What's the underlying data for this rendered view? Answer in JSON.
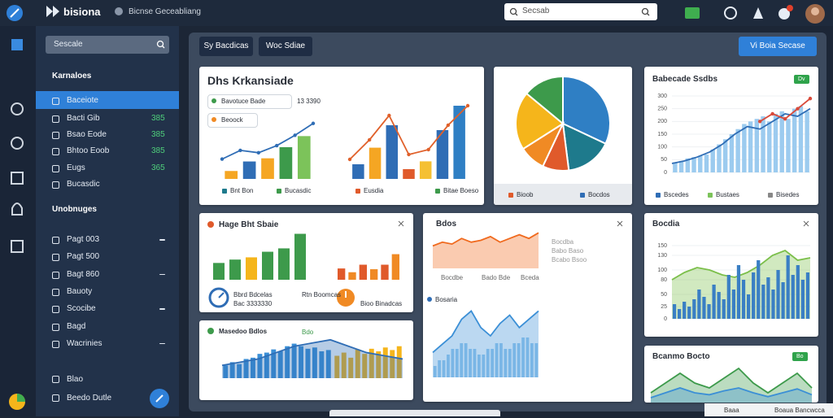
{
  "topbar": {
    "brand": "bisiona",
    "breadcrumb": "Bicnse Geceabliang",
    "search": "Secsab"
  },
  "sidebar": {
    "search": "Sescale",
    "section1": "Karnaloes",
    "items1": [
      {
        "label": "Baceiote"
      },
      {
        "label": "Bacti Gib",
        "value": 385
      },
      {
        "label": "Bsao Eode",
        "value": 385
      },
      {
        "label": "Bhtoo Eoob",
        "value": 385
      },
      {
        "label": "Eugs",
        "value": 365
      },
      {
        "label": "Bucasdic"
      }
    ],
    "section2": "Unobnuges",
    "items2": [
      "Pagt 003",
      "Pagt 500",
      "Bagt 860",
      "Bauoty",
      "Scocibe",
      "Bagd",
      "Wacrinies"
    ],
    "footer": [
      "Blao",
      "Beedo Dutle"
    ]
  },
  "toolbar": {
    "buttons": [
      "Sy Bacdicas",
      "Woc Sdiae"
    ],
    "primary": "Vi Boia Secase"
  },
  "cards": [
    {
      "title": "Dhs Krkansiade",
      "tags": [
        "Bavotuce Bade",
        "Beoock"
      ],
      "stat": "13 3390",
      "legend": [
        "Bnt Bon",
        "Bucasdic",
        "Eusdia",
        "Bitae Boeso"
      ],
      "charts": [
        {
          "type": "bar",
          "values": [
            1,
            2.2,
            2.6,
            4,
            5.4
          ],
          "colors": [
            "#f5a623",
            "#2f6db5",
            "#f5a623",
            "#3d9a4b",
            "#7cc35a"
          ],
          "ylim": [
            0,
            8
          ]
        },
        {
          "type": "line",
          "values": [
            2.5,
            3.6,
            3.3,
            4.2,
            5.5,
            7
          ],
          "color": "#2f6db5",
          "markers": true,
          "ylim": [
            0,
            8
          ]
        },
        {
          "type": "bar",
          "values": [
            1.5,
            3.2,
            5.5,
            1,
            1.8,
            5,
            7.5
          ],
          "colors": [
            "#2f6db5",
            "#f5a623",
            "#2f6db5",
            "#e05a2b",
            "#f5c033",
            "#2f6db5",
            "#2f7fc4"
          ],
          "ylim": [
            0,
            8
          ]
        },
        {
          "type": "line",
          "values": [
            2,
            4,
            6.5,
            2.5,
            3,
            5.5,
            7.5
          ],
          "color": "#e0602a",
          "markers": true,
          "ylim": [
            0,
            8
          ]
        }
      ]
    },
    {
      "legend": [
        "Bioob",
        "Bocdos"
      ],
      "charts": [
        {
          "type": "pie",
          "values": [
            32,
            16,
            9,
            9,
            20,
            14
          ],
          "colors": [
            "#2f7fc4",
            "#1e7a8c",
            "#e05a2b",
            "#f08a24",
            "#f5b51b",
            "#3d9a4b"
          ]
        }
      ]
    },
    {
      "title": "Babecade Ssdbs",
      "badge": "Dv",
      "legend": [
        "Bscedes",
        "Bustaes",
        "Bisedes"
      ],
      "charts": [
        {
          "type": "bar",
          "values": [
            40,
            45,
            55,
            60,
            65,
            70,
            90,
            110,
            130,
            150,
            170,
            190,
            200,
            210,
            220,
            200,
            230,
            240,
            210,
            250,
            260,
            240
          ],
          "color": "#9ccbef",
          "ylim": [
            0,
            300
          ],
          "yticks": [
            0,
            50,
            100,
            150,
            200,
            250,
            300
          ]
        },
        {
          "type": "line",
          "values": [
            35,
            45,
            60,
            80,
            110,
            150,
            180,
            170,
            200,
            230,
            220,
            250
          ],
          "color": "#2f6db5",
          "ylim": [
            0,
            300
          ]
        },
        {
          "type": "line",
          "values": [
            null,
            null,
            null,
            null,
            null,
            null,
            null,
            200,
            230,
            210,
            250,
            290
          ],
          "color": "#d94a3a",
          "markers": true,
          "ylim": [
            0,
            300
          ]
        }
      ]
    },
    {
      "title": "Hage Bht Sbaie",
      "stats": [
        [
          "Bbrd Bdcelas",
          "Bac 3333330"
        ],
        [
          "Rtn Boomcas",
          "Bioo Binadcas"
        ]
      ],
      "charts": [
        {
          "type": "bar",
          "values": [
            3,
            3.6,
            4,
            5,
            5.6,
            8.2
          ],
          "colors": [
            "#3d9a4b",
            "#3d9a4b",
            "#f5b51b",
            "#3d9a4b",
            "#3d9a4b",
            "#3d9a4b"
          ],
          "ylim": [
            0,
            9
          ]
        },
        {
          "type": "bar",
          "values": [
            1.5,
            1,
            2,
            1.4,
            2,
            3.4
          ],
          "colors": [
            "#e05a2b",
            "#f08a24",
            "#e05a2b",
            "#f08a24",
            "#e05a2b",
            "#f08a24"
          ],
          "ylim": [
            0,
            4
          ]
        }
      ]
    },
    {
      "title": "Bdos",
      "notes": [
        "Bocdba",
        "Babo Baso",
        "Bcabo Bsoo"
      ],
      "axis_labels": [
        "Bocdbe",
        "Bado Bde",
        "Bceda"
      ],
      "marker_label": "Bosaria",
      "charts": [
        {
          "type": "area",
          "values": [
            6,
            7,
            6.5,
            8,
            7,
            7.5,
            8.5,
            7,
            8,
            9,
            8,
            9.5
          ],
          "color": "#f06a1e",
          "ylim": [
            0,
            10
          ]
        },
        {
          "type": "bar",
          "values": [
            2,
            3,
            3,
            4,
            5,
            5,
            6,
            6,
            5,
            5,
            4,
            4,
            5,
            5,
            6,
            6,
            5,
            5,
            6,
            6,
            7,
            7,
            6,
            6
          ],
          "color": "#9ccbef",
          "ylim": [
            0,
            10
          ]
        },
        {
          "type": "area",
          "values": [
            3,
            4,
            5,
            7,
            8,
            6,
            5,
            6.5,
            7.5,
            6,
            7,
            8
          ],
          "color": "#3b8fd6",
          "ylim": [
            0,
            10
          ]
        }
      ]
    },
    {
      "title": "Bocdia",
      "charts": [
        {
          "type": "area",
          "values": [
            80,
            95,
            105,
            100,
            90,
            85,
            95,
            110,
            130,
            140,
            120,
            125
          ],
          "color": "#7bbf4a",
          "ylim": [
            0,
            150
          ],
          "yticks": [
            0,
            25,
            50,
            80,
            100,
            130,
            150
          ]
        },
        {
          "type": "bar",
          "values": [
            30,
            20,
            35,
            25,
            40,
            60,
            45,
            30,
            70,
            55,
            40,
            90,
            60,
            110,
            80,
            50,
            95,
            120,
            70,
            85,
            60,
            100,
            75,
            130,
            90,
            110,
            80,
            95
          ],
          "color": "#3a7fc4",
          "ylim": [
            0,
            150
          ]
        }
      ]
    },
    {
      "title": "Masedoo Bdlos",
      "badge": "Bdo",
      "charts": [
        {
          "type": "bar",
          "values": [
            2,
            2.5,
            2.2,
            3,
            3.2,
            3.8,
            4,
            4.5,
            4.2,
            5,
            5.4,
            5,
            4.6,
            4.8,
            4.2,
            4.4
          ],
          "color": "#3b8fd6",
          "ylim": [
            0,
            7
          ]
        },
        {
          "type": "bar",
          "values": [
            3.5,
            4,
            3.2,
            4.5,
            3.8,
            4.6,
            4.2,
            4.8,
            4.4,
            5
          ],
          "color": "#f5b51b",
          "ylim": [
            0,
            7
          ]
        },
        {
          "type": "area",
          "values": [
            2,
            2.5,
            3,
            4,
            5,
            5.5,
            6,
            5,
            4,
            3.5,
            3
          ],
          "color": "#2f6db5",
          "ylim": [
            0,
            7
          ]
        }
      ]
    },
    {
      "title": "Bcanmo Bocto",
      "badge": "Bo",
      "charts": [
        {
          "type": "area",
          "values": [
            1,
            2,
            3,
            2,
            1.5,
            2.5,
            3.5,
            2,
            1,
            2,
            3,
            1.5
          ],
          "color": "#3d9a4b",
          "ylim": [
            0,
            4
          ]
        },
        {
          "type": "area",
          "values": [
            0.5,
            1,
            1.5,
            1,
            0.8,
            1.2,
            1.5,
            1,
            0.6,
            1,
            1.4,
            0.8
          ],
          "color": "#3b8fd6",
          "ylim": [
            0,
            4
          ]
        }
      ]
    }
  ],
  "footer": {
    "left": "Baaa",
    "right": "Boaua Bancwcca"
  }
}
